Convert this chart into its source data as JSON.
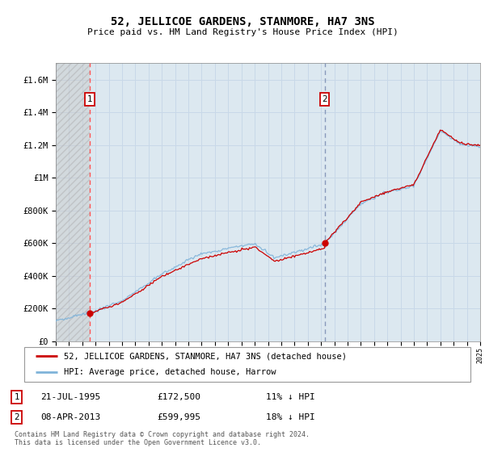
{
  "title": "52, JELLICOE GARDENS, STANMORE, HA7 3NS",
  "subtitle": "Price paid vs. HM Land Registry's House Price Index (HPI)",
  "legend_line1": "52, JELLICOE GARDENS, STANMORE, HA7 3NS (detached house)",
  "legend_line2": "HPI: Average price, detached house, Harrow",
  "annotation1_date": "21-JUL-1995",
  "annotation1_price": "£172,500",
  "annotation1_hpi": "11% ↓ HPI",
  "annotation2_date": "08-APR-2013",
  "annotation2_price": "£599,995",
  "annotation2_hpi": "18% ↓ HPI",
  "footer": "Contains HM Land Registry data © Crown copyright and database right 2024.\nThis data is licensed under the Open Government Licence v3.0.",
  "hpi_line_color": "#7fb3d9",
  "price_line_color": "#cc0000",
  "marker_color": "#cc0000",
  "annotation_box_color": "#cc0000",
  "vline1_color": "#ff5555",
  "vline2_color": "#8899bb",
  "ylim": [
    0,
    1700000
  ],
  "yticks": [
    0,
    200000,
    400000,
    600000,
    800000,
    1000000,
    1200000,
    1400000,
    1600000
  ],
  "grid_color": "#c8d8e8",
  "bg_color": "#dce8f0",
  "trans1_year": 1995.55,
  "trans2_year": 2013.27,
  "trans1_price": 172500,
  "trans2_price": 599995
}
